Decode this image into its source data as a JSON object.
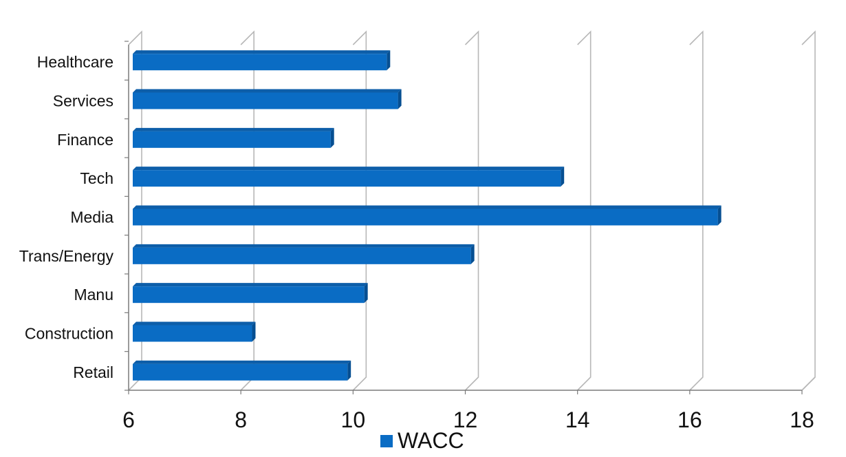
{
  "chart_data": {
    "type": "bar",
    "orientation": "horizontal",
    "categories": [
      "Healthcare",
      "Services",
      "Finance",
      "Tech",
      "Media",
      "Trans/Energy",
      "Manu",
      "Construction",
      "Retail"
    ],
    "series": [
      {
        "name": "WACC",
        "values": [
          10.6,
          10.8,
          9.6,
          13.7,
          16.5,
          12.1,
          10.2,
          8.2,
          9.9
        ]
      }
    ],
    "xlim": [
      6,
      18
    ],
    "x_ticks": [
      "6",
      "8",
      "10",
      "12",
      "14",
      "16",
      "18"
    ],
    "grid": true,
    "legend_position": "bottom",
    "colors": {
      "bar": "#0a6cc4",
      "bar_top": "#0d5ea9",
      "bar_side": "#064f92",
      "grid": "#b7b7b7",
      "axis": "#7a7a7a"
    }
  }
}
